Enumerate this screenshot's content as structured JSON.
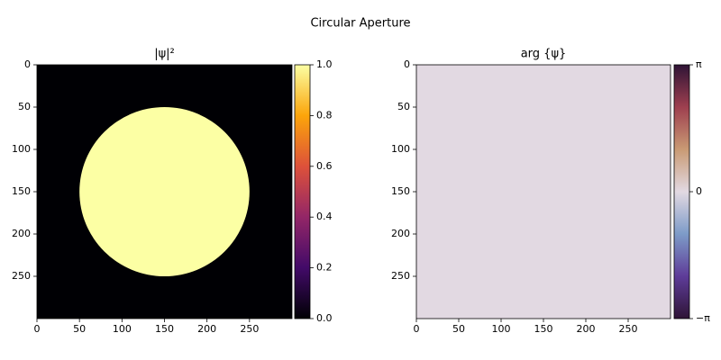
{
  "title": "Circular Aperture",
  "chart_data": [
    {
      "type": "image",
      "title": "|ψ|²",
      "xlim": [
        0,
        300
      ],
      "ylim": [
        300,
        0
      ],
      "xticks": [
        0,
        50,
        100,
        150,
        200,
        250
      ],
      "yticks": [
        0,
        50,
        100,
        150,
        200,
        250
      ],
      "aperture": {
        "cx": 150,
        "cy": 150,
        "r": 100,
        "inside": 1,
        "outside": 0
      },
      "clim": [
        0,
        1
      ],
      "colorbar_ticks": [
        {
          "value": 0,
          "label": "0.0"
        },
        {
          "value": 0.2,
          "label": "0.2"
        },
        {
          "value": 0.4,
          "label": "0.4"
        },
        {
          "value": 0.6,
          "label": "0.6"
        },
        {
          "value": 0.8,
          "label": "0.8"
        },
        {
          "value": 1,
          "label": "1.0"
        }
      ],
      "colormap": [
        "#000004",
        "#420a68",
        "#932667",
        "#dd513a",
        "#fca50a",
        "#fcffa4"
      ]
    },
    {
      "type": "image",
      "title": "arg {ψ}",
      "xlim": [
        0,
        300
      ],
      "ylim": [
        300,
        0
      ],
      "xticks": [
        0,
        50,
        100,
        150,
        200,
        250
      ],
      "yticks": [
        0,
        50,
        100,
        150,
        200,
        250
      ],
      "value": 0,
      "clim": [
        -3.14159,
        3.14159
      ],
      "colorbar_ticks": [
        {
          "value": -3.14159,
          "label": "−π"
        },
        {
          "value": 0,
          "label": "0"
        },
        {
          "value": 3.14159,
          "label": "π"
        }
      ],
      "colormap": [
        "#2f1436",
        "#5e3c99",
        "#7d9bc8",
        "#e2d9e2",
        "#c99a74",
        "#9e3f4f",
        "#2f1436"
      ]
    }
  ]
}
